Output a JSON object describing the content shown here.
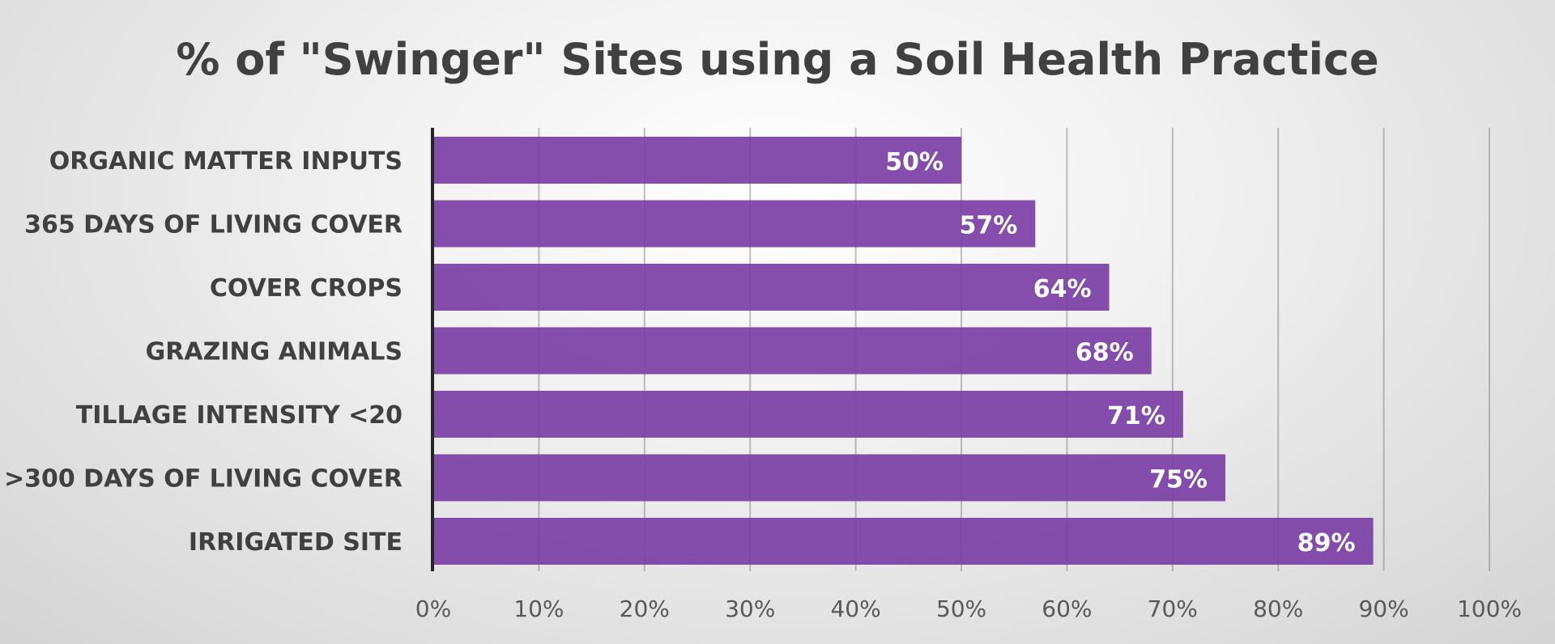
{
  "chart_data": {
    "type": "bar",
    "orientation": "horizontal",
    "title": "% of \"Swinger\" Sites using a Soil Health Practice",
    "categories": [
      "ORGANIC MATTER INPUTS",
      "365 DAYS OF LIVING COVER",
      "COVER CROPS",
      "GRAZING ANIMALS",
      "TILLAGE INTENSITY  <20",
      ">300 DAYS OF LIVING COVER",
      "IRRIGATED SITE"
    ],
    "values": [
      50,
      57,
      64,
      68,
      71,
      75,
      89
    ],
    "data_labels": [
      "50%",
      "57%",
      "64%",
      "68%",
      "71%",
      "75%",
      "89%"
    ],
    "xlim": [
      0,
      100
    ],
    "xticks": [
      0,
      10,
      20,
      30,
      40,
      50,
      60,
      70,
      80,
      90,
      100
    ],
    "xtick_labels": [
      "0%",
      "10%",
      "20%",
      "30%",
      "40%",
      "50%",
      "60%",
      "70%",
      "80%",
      "90%",
      "100%"
    ],
    "xlabel": "",
    "ylabel": "",
    "grid": true,
    "legend": "none",
    "bar_color": "#7B3FA6",
    "data_label_color": "#FFFFFF",
    "text_color": "#404040"
  }
}
